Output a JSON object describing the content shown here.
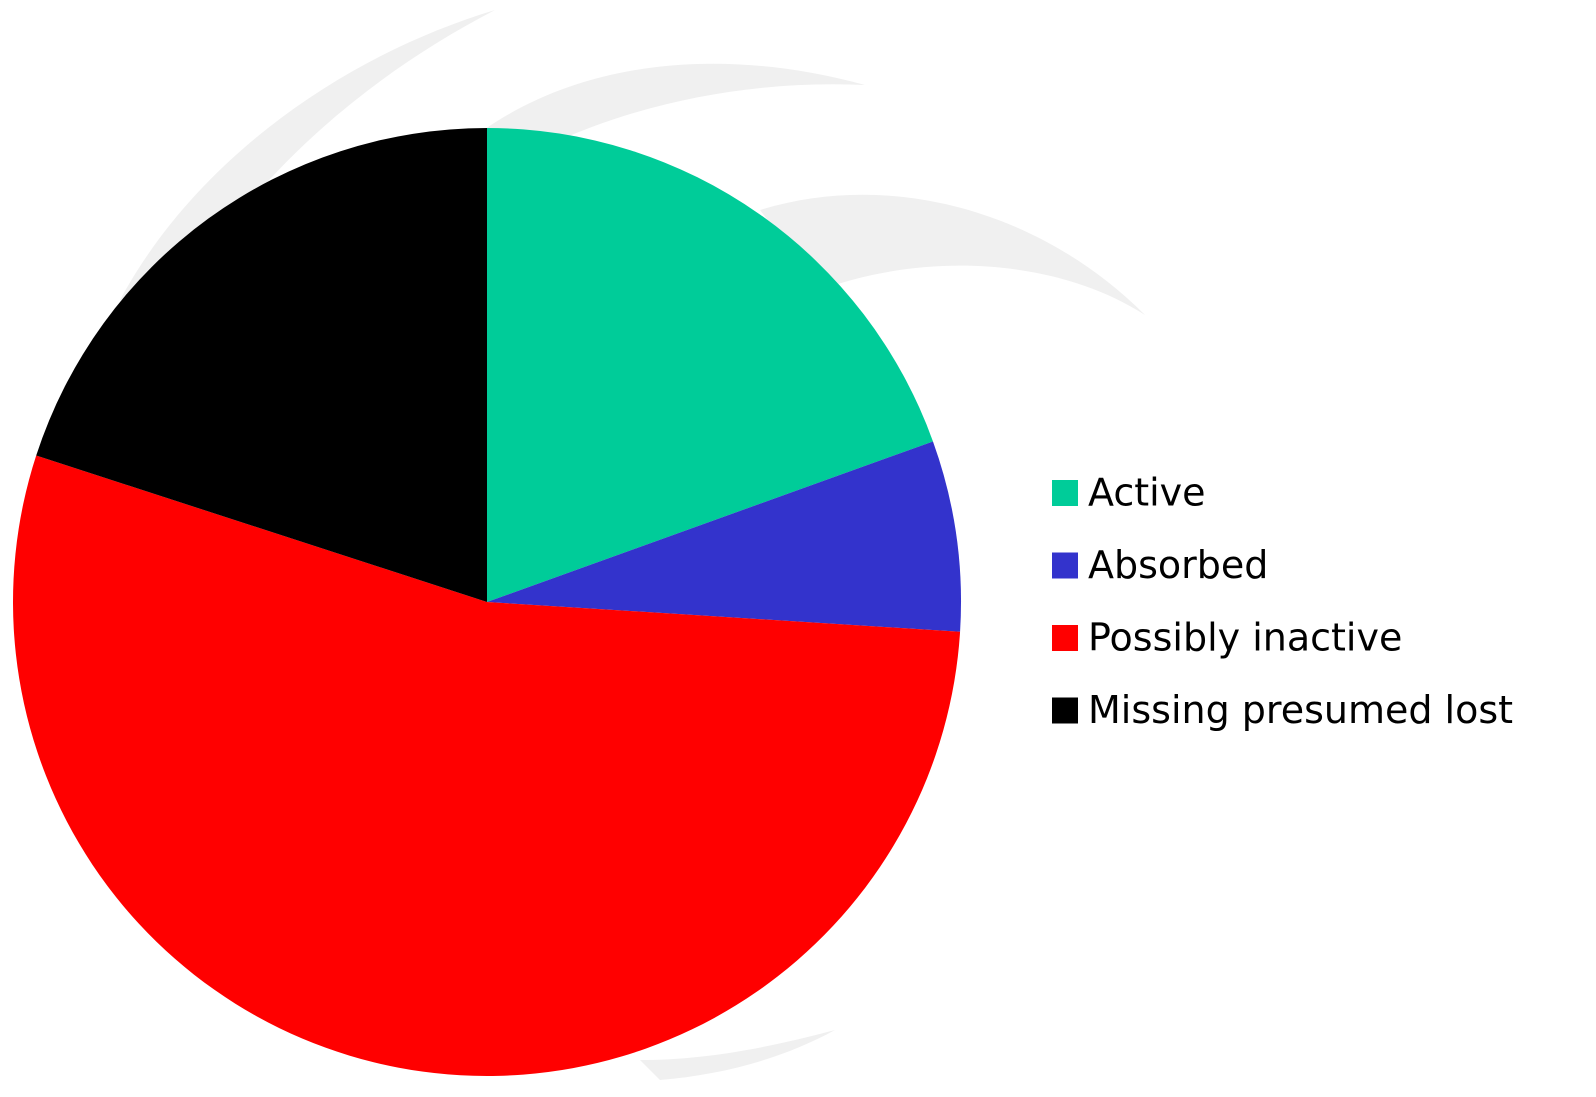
{
  "chart_data": {
    "type": "pie",
    "categories": [
      "Active",
      "Absorbed",
      "Possibly inactive",
      "Missing presumed lost"
    ],
    "values": [
      19.5,
      6.5,
      54,
      20
    ],
    "colors": [
      "#00cc99",
      "#3333cc",
      "#ff0000",
      "#000000"
    ],
    "legend": "right"
  }
}
